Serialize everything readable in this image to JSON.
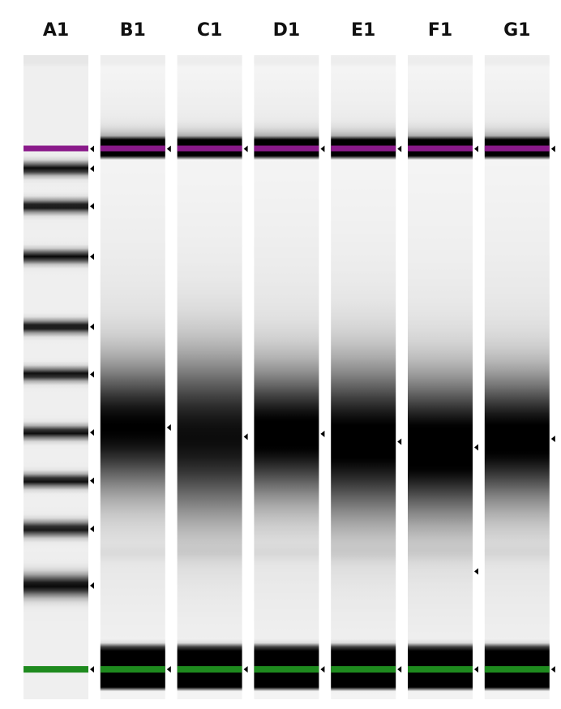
{
  "gel": {
    "lanes": [
      {
        "label": "A1",
        "type": "ladder",
        "upper_marker": true,
        "lower_marker": true,
        "bands": [
          {
            "pos": 0.238,
            "strength": 0.95,
            "width": 0.006
          },
          {
            "pos": 0.291,
            "strength": 0.95,
            "width": 0.006
          },
          {
            "pos": 0.362,
            "strength": 0.95,
            "width": 0.006
          },
          {
            "pos": 0.461,
            "strength": 0.95,
            "width": 0.006
          },
          {
            "pos": 0.528,
            "strength": 0.95,
            "width": 0.006
          },
          {
            "pos": 0.61,
            "strength": 0.95,
            "width": 0.006
          },
          {
            "pos": 0.678,
            "strength": 0.95,
            "width": 0.006
          },
          {
            "pos": 0.746,
            "strength": 0.9,
            "width": 0.007
          },
          {
            "pos": 0.826,
            "strength": 0.82,
            "width": 0.01
          }
        ],
        "peak_markers": [
          0.238,
          0.291,
          0.362,
          0.461,
          0.528,
          0.61,
          0.678,
          0.746,
          0.826
        ]
      },
      {
        "label": "B1",
        "type": "sample",
        "upper_marker": true,
        "lower_marker": true,
        "smear": {
          "center": 0.603,
          "sigma": 0.06,
          "strength": 0.9
        },
        "peak_markers": [
          0.603
        ]
      },
      {
        "label": "C1",
        "type": "sample",
        "upper_marker": true,
        "lower_marker": true,
        "smear": {
          "center": 0.616,
          "sigma": 0.075,
          "strength": 0.85
        },
        "peak_markers": [
          0.616
        ]
      },
      {
        "label": "D1",
        "type": "sample",
        "upper_marker": true,
        "lower_marker": true,
        "smear": {
          "center": 0.612,
          "sigma": 0.06,
          "strength": 0.95
        },
        "peak_markers": [
          0.612
        ]
      },
      {
        "label": "E1",
        "type": "sample",
        "upper_marker": true,
        "lower_marker": true,
        "smear": {
          "center": 0.623,
          "sigma": 0.07,
          "strength": 0.95
        },
        "peak_markers": [
          0.623
        ]
      },
      {
        "label": "F1",
        "type": "sample",
        "upper_marker": true,
        "lower_marker": true,
        "smear": {
          "center": 0.631,
          "sigma": 0.065,
          "strength": 1.0
        },
        "peak_markers": [
          0.631,
          0.806
        ]
      },
      {
        "label": "G1",
        "type": "sample",
        "upper_marker": true,
        "lower_marker": true,
        "smear": {
          "center": 0.619,
          "sigma": 0.06,
          "strength": 0.95
        },
        "peak_markers": [
          0.619
        ]
      }
    ],
    "upper_marker_pos": 0.21,
    "lower_marker_pos": 0.944,
    "colors": {
      "background": "#ffffff",
      "lane_base": "#f4f4f4",
      "band": "#000000",
      "upper_marker": "#8a1a8a",
      "lower_marker": "#1e8a1e",
      "label": "#111111",
      "tick": "#000000"
    }
  }
}
